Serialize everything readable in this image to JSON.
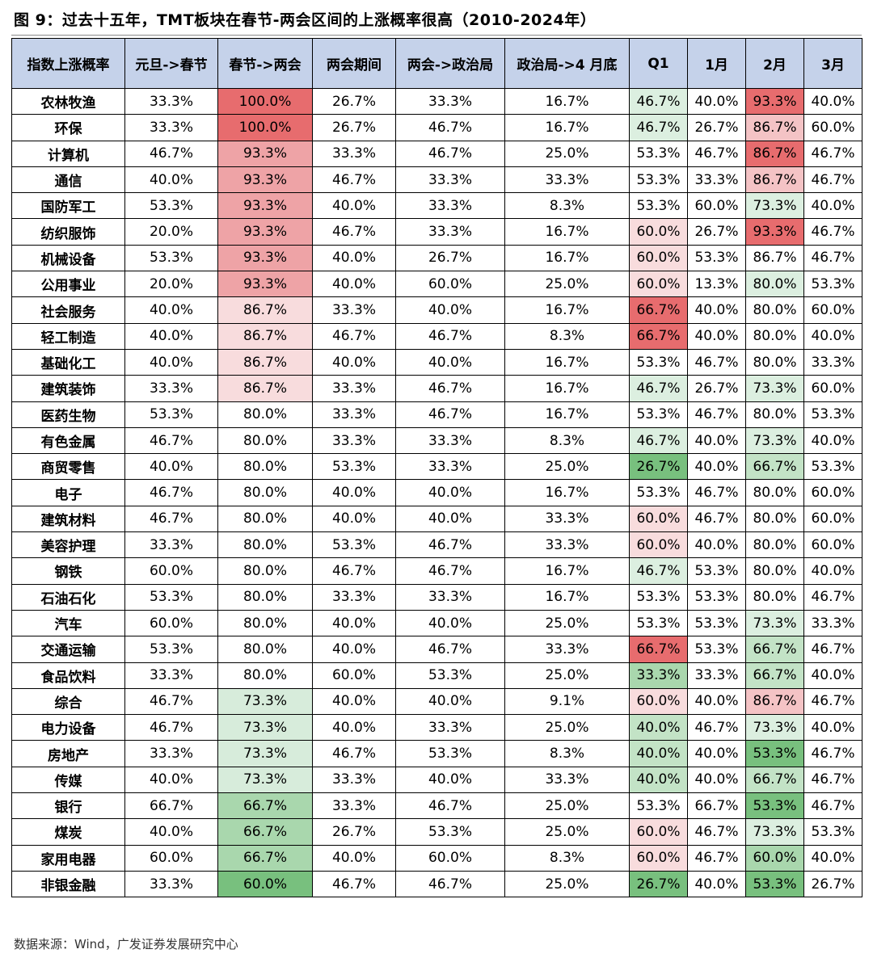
{
  "title": "图 9：过去十五年，TMT板块在春节-两会区间的上涨概率很高（2010-2024年）",
  "source": "数据来源：Wind，广发证券发展研究中心",
  "colors": {
    "header_bg": "#c5d2ea",
    "red_scale": [
      "#f8dcdd",
      "#f4c3c5",
      "#eea3a6",
      "#e76c6e"
    ],
    "green_scale": [
      "#d7ecdb",
      "#b8deb9",
      "#8ecd93",
      "#6cbc73"
    ]
  },
  "chart_data": {
    "type": "table",
    "columns": [
      "指数上涨概率",
      "元旦->春节",
      "春节->两会",
      "两会期间",
      "两会->政治局",
      "政治局->4 月底",
      "Q1",
      "1月",
      "2月",
      "3月"
    ],
    "rows": [
      [
        "农林牧渔",
        "33.3%",
        "100.0%",
        "26.7%",
        "33.3%",
        "16.7%",
        "46.7%",
        "40.0%",
        "93.3%",
        "40.0%"
      ],
      [
        "环保",
        "33.3%",
        "100.0%",
        "26.7%",
        "46.7%",
        "16.7%",
        "46.7%",
        "26.7%",
        "86.7%",
        "60.0%"
      ],
      [
        "计算机",
        "46.7%",
        "93.3%",
        "33.3%",
        "46.7%",
        "25.0%",
        "53.3%",
        "46.7%",
        "86.7%",
        "46.7%"
      ],
      [
        "通信",
        "40.0%",
        "93.3%",
        "46.7%",
        "33.3%",
        "33.3%",
        "53.3%",
        "33.3%",
        "86.7%",
        "46.7%"
      ],
      [
        "国防军工",
        "53.3%",
        "93.3%",
        "40.0%",
        "33.3%",
        "8.3%",
        "53.3%",
        "60.0%",
        "73.3%",
        "40.0%"
      ],
      [
        "纺织服饰",
        "20.0%",
        "93.3%",
        "46.7%",
        "33.3%",
        "16.7%",
        "60.0%",
        "26.7%",
        "93.3%",
        "46.7%"
      ],
      [
        "机械设备",
        "53.3%",
        "93.3%",
        "40.0%",
        "26.7%",
        "16.7%",
        "60.0%",
        "53.3%",
        "86.7%",
        "46.7%"
      ],
      [
        "公用事业",
        "20.0%",
        "93.3%",
        "40.0%",
        "60.0%",
        "25.0%",
        "60.0%",
        "13.3%",
        "80.0%",
        "53.3%"
      ],
      [
        "社会服务",
        "40.0%",
        "86.7%",
        "33.3%",
        "40.0%",
        "16.7%",
        "66.7%",
        "40.0%",
        "80.0%",
        "60.0%"
      ],
      [
        "轻工制造",
        "40.0%",
        "86.7%",
        "46.7%",
        "46.7%",
        "8.3%",
        "66.7%",
        "40.0%",
        "80.0%",
        "40.0%"
      ],
      [
        "基础化工",
        "40.0%",
        "86.7%",
        "40.0%",
        "40.0%",
        "16.7%",
        "53.3%",
        "46.7%",
        "80.0%",
        "33.3%"
      ],
      [
        "建筑装饰",
        "33.3%",
        "86.7%",
        "33.3%",
        "46.7%",
        "16.7%",
        "46.7%",
        "26.7%",
        "73.3%",
        "60.0%"
      ],
      [
        "医药生物",
        "53.3%",
        "80.0%",
        "33.3%",
        "46.7%",
        "16.7%",
        "53.3%",
        "46.7%",
        "80.0%",
        "53.3%"
      ],
      [
        "有色金属",
        "46.7%",
        "80.0%",
        "33.3%",
        "33.3%",
        "8.3%",
        "46.7%",
        "40.0%",
        "73.3%",
        "40.0%"
      ],
      [
        "商贸零售",
        "40.0%",
        "80.0%",
        "53.3%",
        "33.3%",
        "25.0%",
        "26.7%",
        "40.0%",
        "66.7%",
        "53.3%"
      ],
      [
        "电子",
        "46.7%",
        "80.0%",
        "40.0%",
        "40.0%",
        "16.7%",
        "53.3%",
        "46.7%",
        "80.0%",
        "60.0%"
      ],
      [
        "建筑材料",
        "46.7%",
        "80.0%",
        "40.0%",
        "40.0%",
        "33.3%",
        "60.0%",
        "46.7%",
        "80.0%",
        "60.0%"
      ],
      [
        "美容护理",
        "33.3%",
        "80.0%",
        "53.3%",
        "46.7%",
        "33.3%",
        "60.0%",
        "40.0%",
        "80.0%",
        "60.0%"
      ],
      [
        "钢铁",
        "60.0%",
        "80.0%",
        "46.7%",
        "46.7%",
        "16.7%",
        "46.7%",
        "53.3%",
        "80.0%",
        "40.0%"
      ],
      [
        "石油石化",
        "53.3%",
        "80.0%",
        "33.3%",
        "33.3%",
        "16.7%",
        "53.3%",
        "53.3%",
        "80.0%",
        "46.7%"
      ],
      [
        "汽车",
        "60.0%",
        "80.0%",
        "40.0%",
        "40.0%",
        "25.0%",
        "53.3%",
        "53.3%",
        "73.3%",
        "33.3%"
      ],
      [
        "交通运输",
        "53.3%",
        "80.0%",
        "40.0%",
        "46.7%",
        "33.3%",
        "66.7%",
        "53.3%",
        "66.7%",
        "46.7%"
      ],
      [
        "食品饮料",
        "33.3%",
        "80.0%",
        "60.0%",
        "53.3%",
        "25.0%",
        "33.3%",
        "33.3%",
        "66.7%",
        "40.0%"
      ],
      [
        "综合",
        "46.7%",
        "73.3%",
        "40.0%",
        "40.0%",
        "9.1%",
        "60.0%",
        "40.0%",
        "86.7%",
        "46.7%"
      ],
      [
        "电力设备",
        "46.7%",
        "73.3%",
        "40.0%",
        "33.3%",
        "25.0%",
        "40.0%",
        "46.7%",
        "73.3%",
        "40.0%"
      ],
      [
        "房地产",
        "33.3%",
        "73.3%",
        "46.7%",
        "53.3%",
        "8.3%",
        "40.0%",
        "40.0%",
        "53.3%",
        "46.7%"
      ],
      [
        "传媒",
        "40.0%",
        "73.3%",
        "33.3%",
        "40.0%",
        "33.3%",
        "40.0%",
        "40.0%",
        "66.7%",
        "46.7%"
      ],
      [
        "银行",
        "66.7%",
        "66.7%",
        "33.3%",
        "46.7%",
        "25.0%",
        "53.3%",
        "66.7%",
        "53.3%",
        "46.7%"
      ],
      [
        "煤炭",
        "40.0%",
        "66.7%",
        "26.7%",
        "53.3%",
        "25.0%",
        "60.0%",
        "46.7%",
        "73.3%",
        "53.3%"
      ],
      [
        "家用电器",
        "60.0%",
        "66.7%",
        "40.0%",
        "60.0%",
        "8.3%",
        "60.0%",
        "46.7%",
        "60.0%",
        "40.0%"
      ],
      [
        "非银金融",
        "33.3%",
        "60.0%",
        "46.7%",
        "46.7%",
        "25.0%",
        "26.7%",
        "40.0%",
        "53.3%",
        "26.7%"
      ]
    ]
  },
  "cell_colors": {
    "春节->两会": {
      "100.0%": "#e76c6e",
      "93.3%": "#eea3a6",
      "86.7%": "#f8dcdd",
      "80.0%": "",
      "73.3%": "#d7ecdb",
      "66.7%": "#a9d7ad",
      "60.0%": "#78c07e"
    },
    "Q1": {
      "66.7%": "#e76c6e",
      "60.0%": "#f8dcdd",
      "53.3%": "",
      "46.7%": "#dcefe0",
      "40.0%": "#c3e3c6",
      "33.3%": "#a9d7ad",
      "26.7%": "#78c07e"
    },
    "2月": {
      "93.3%": "#e76c6e",
      "86.7%": "#f4c3c5",
      "80.0%": "",
      "73.3%": "#dcefe0",
      "66.7%": "#c3e3c6",
      "60.0%": "#a9d7ad",
      "53.3%": "#78c07e"
    },
    "overrides": [
      {
        "row": "计算机",
        "col": "2月",
        "color": "#e76c6e"
      },
      {
        "row": "公用事业",
        "col": "2月",
        "color": "#dcefe0"
      },
      {
        "row": "机械设备",
        "col": "2月",
        "color": ""
      },
      {
        "row": "基础化工",
        "col": "Q1",
        "color": ""
      }
    ]
  }
}
